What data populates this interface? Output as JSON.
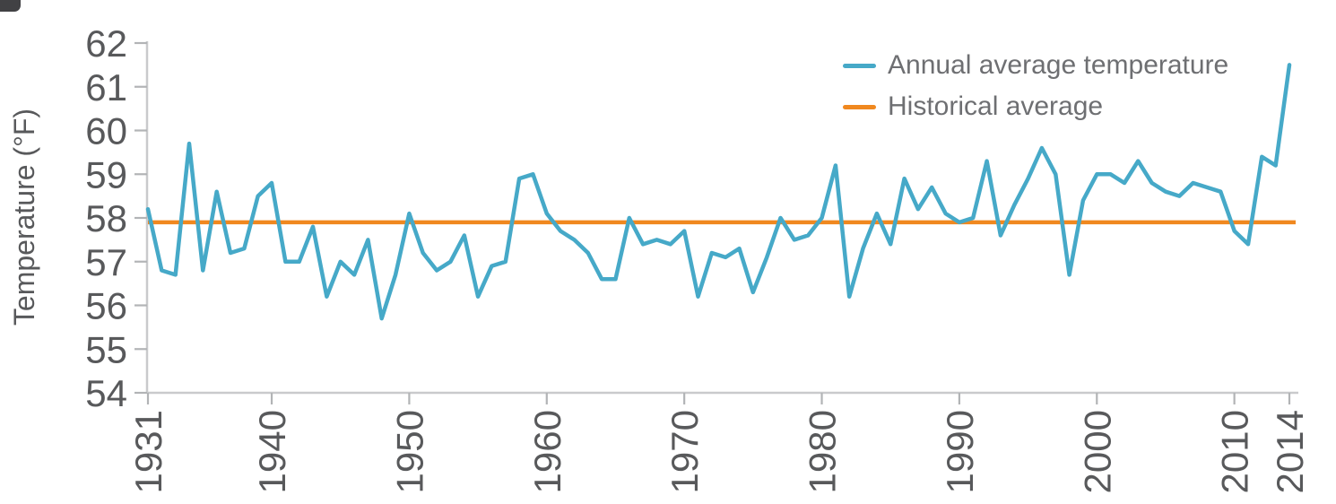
{
  "chart_data": {
    "type": "line",
    "title": "",
    "xlabel": "",
    "ylabel": "Temperature (°F)",
    "xlim": [
      1931,
      2014
    ],
    "ylim": [
      54,
      62
    ],
    "x_ticks": [
      1931,
      1940,
      1950,
      1960,
      1970,
      1980,
      1990,
      2000,
      2010,
      2014
    ],
    "y_ticks": [
      54,
      55,
      56,
      57,
      58,
      59,
      60,
      61,
      62
    ],
    "grid": false,
    "legend_position": "top-right",
    "legend": [
      "Annual average temperature",
      "Historical average"
    ],
    "colors": {
      "annual_line": "#46a9c8",
      "historical_line": "#f0881f",
      "axis": "#c9cacc",
      "tick": "#b2b4b6",
      "tick_label": "#58595b",
      "legend_text": "#6e6f72"
    },
    "series": [
      {
        "name": "Annual average temperature",
        "type": "line",
        "color": "#46a9c8",
        "x": [
          1931,
          1932,
          1933,
          1934,
          1935,
          1936,
          1937,
          1938,
          1939,
          1940,
          1941,
          1942,
          1943,
          1944,
          1945,
          1946,
          1947,
          1948,
          1949,
          1950,
          1951,
          1952,
          1953,
          1954,
          1955,
          1956,
          1957,
          1958,
          1959,
          1960,
          1961,
          1962,
          1963,
          1964,
          1965,
          1966,
          1967,
          1968,
          1969,
          1970,
          1971,
          1972,
          1973,
          1974,
          1975,
          1976,
          1977,
          1978,
          1979,
          1980,
          1981,
          1982,
          1983,
          1984,
          1985,
          1986,
          1987,
          1988,
          1989,
          1990,
          1991,
          1992,
          1993,
          1994,
          1995,
          1996,
          1997,
          1998,
          1999,
          2000,
          2001,
          2002,
          2003,
          2004,
          2005,
          2006,
          2007,
          2008,
          2009,
          2010,
          2011,
          2012,
          2013,
          2014
        ],
        "values": [
          58.2,
          56.8,
          56.7,
          59.7,
          56.8,
          58.6,
          57.2,
          57.3,
          58.5,
          58.8,
          57.0,
          57.0,
          57.8,
          56.2,
          57.0,
          56.7,
          57.5,
          55.7,
          56.7,
          58.1,
          57.2,
          56.8,
          57.0,
          57.6,
          56.2,
          56.9,
          57.0,
          58.9,
          59.0,
          58.1,
          57.7,
          57.5,
          57.2,
          56.6,
          56.6,
          58.0,
          57.4,
          57.5,
          57.4,
          57.7,
          56.2,
          57.2,
          57.1,
          57.3,
          56.3,
          57.1,
          58.0,
          57.5,
          57.6,
          58.0,
          59.2,
          56.2,
          57.3,
          58.1,
          57.4,
          58.9,
          58.2,
          58.7,
          58.1,
          57.9,
          58.0,
          59.3,
          57.6,
          58.3,
          58.9,
          59.6,
          59.0,
          56.7,
          58.4,
          59.0,
          59.0,
          58.8,
          59.3,
          58.8,
          58.6,
          58.5,
          58.8,
          58.7,
          58.6,
          57.7,
          57.4,
          59.4,
          59.2,
          61.5
        ]
      },
      {
        "name": "Historical average",
        "type": "hline",
        "color": "#f0881f",
        "value": 57.9
      }
    ]
  }
}
